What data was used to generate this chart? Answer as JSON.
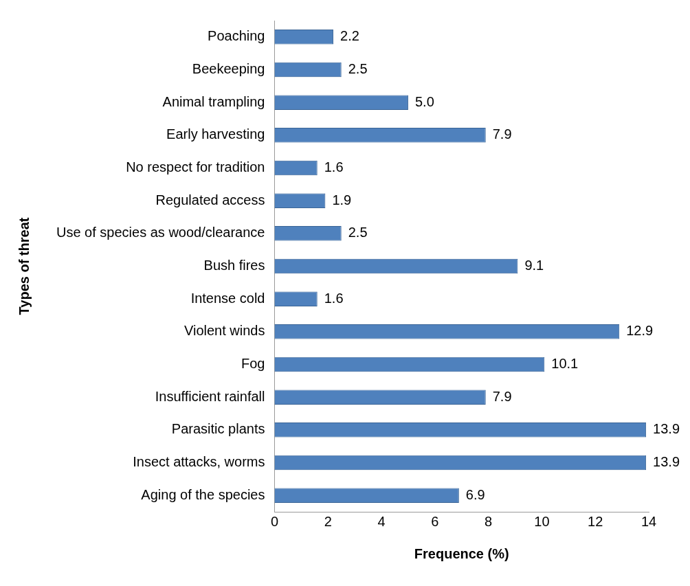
{
  "chart_data": {
    "type": "bar",
    "orientation": "horizontal",
    "xlabel": "Frequence (%)",
    "ylabel": "Types of threat",
    "categories": [
      "Poaching",
      "Beekeeping",
      "Animal trampling",
      "Early harvesting",
      "No respect for tradition",
      "Regulated access",
      "Use of species as wood/clearance",
      "Bush fires",
      "Intense cold",
      "Violent winds",
      "Fog",
      "Insufficient rainfall",
      "Parasitic plants",
      "Insect attacks, worms",
      "Aging of the species"
    ],
    "values": [
      2.2,
      2.5,
      5.0,
      7.9,
      1.6,
      1.9,
      2.5,
      9.1,
      1.6,
      12.9,
      10.1,
      7.9,
      13.9,
      13.9,
      6.9
    ],
    "value_labels": [
      "2.2",
      "2.5",
      "5.0",
      "7.9",
      "1.6",
      "1.9",
      "2.5",
      "9.1",
      "1.6",
      "12.9",
      "10.1",
      "7.9",
      "13.9",
      "13.9",
      "6.9"
    ],
    "color": "#4f81bd",
    "xlim": [
      0,
      14
    ],
    "xticks": [
      0,
      2,
      4,
      6,
      8,
      10,
      12,
      14
    ],
    "grid": false,
    "legend": false
  }
}
